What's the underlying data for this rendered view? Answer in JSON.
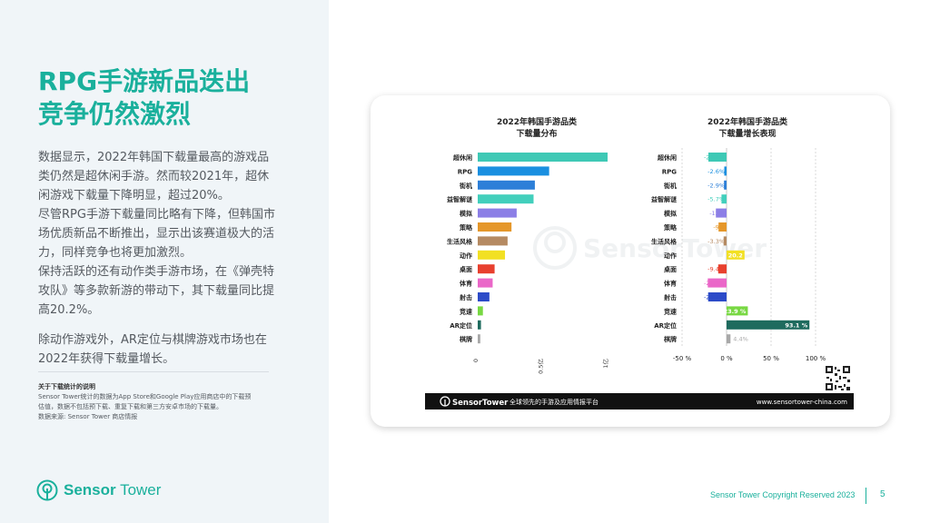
{
  "slide": {
    "title_lines": [
      "RPG手游新品迭出",
      "竞争仍然激烈"
    ],
    "paragraphs": [
      "数据显示，2022年韩国下载量最高的游戏品类仍然是超休闲手游。然而较2021年，超休闲游戏下载量下降明显，超过20%。",
      "尽管RPG手游下载量同比略有下降，但韩国市场优质新品不断推出，显示出该赛道极大的活力，同样竞争也将更加激烈。",
      "保持活跃的还有动作类手游市场，在《弹壳特攻队》等多款新游的带动下，其下载量同比提高20.2%。",
      "除动作游戏外，AR定位与棋牌游戏市场也在2022年获得下载量增长。"
    ],
    "notes_heading": "关于下载统计的说明",
    "notes_lines": [
      "Sensor Tower统计的数据为App Store和Google Play应用商店中的下载预",
      "估值，数据不包括预下载、重复下载和第三方安卓市场的下载量。",
      "数据来源: Sensor Tower 商店情报"
    ],
    "logo_word1": "Sensor",
    "logo_word2": "Tower",
    "copyright": "Sensor Tower Copyright Reserved 2023",
    "page_number": "5"
  },
  "card": {
    "watermark": "SensorTower",
    "footer_logo": "SensorTower",
    "footer_tagline": "全球领先的手游及应用情报平台",
    "footer_url": "www.sensortower-china.com"
  },
  "colors": {
    "brand": "#1ab09c",
    "categories": [
      "#3ec9b5",
      "#1a8fe0",
      "#2d7fd8",
      "#42cfbc",
      "#8c7fe6",
      "#e5972a",
      "#b58a62",
      "#f2e023",
      "#e8402e",
      "#ea67c8",
      "#2c4bc8",
      "#78d843",
      "#1e6b5e",
      "#a8a8a8"
    ]
  },
  "chart_data": [
    {
      "type": "bar",
      "title": "2022年韩国手游品类下载量分布",
      "title_lines": [
        "2022年韩国手游品类",
        "下载量分布"
      ],
      "orientation": "horizontal",
      "categories": [
        "超休闲",
        "RPG",
        "街机",
        "益智解谜",
        "模拟",
        "策略",
        "生活风格",
        "动作",
        "桌面",
        "体育",
        "射击",
        "竞速",
        "AR定位",
        "棋牌"
      ],
      "values": [
        1.0,
        0.55,
        0.44,
        0.43,
        0.3,
        0.26,
        0.23,
        0.21,
        0.13,
        0.115,
        0.09,
        0.04,
        0.025,
        0.02
      ],
      "xlim": [
        0,
        1
      ],
      "ticks": [
        0,
        0.5,
        1
      ],
      "tick_labels": [
        "0",
        "0.5亿",
        "1亿"
      ]
    },
    {
      "type": "bar",
      "title": "2022年韩国手游品类下载量增长表现",
      "title_lines": [
        "2022年韩国手游品类",
        "下载量增长表现"
      ],
      "orientation": "horizontal",
      "categories": [
        "超休闲",
        "RPG",
        "街机",
        "益智解谜",
        "模拟",
        "策略",
        "生活风格",
        "动作",
        "桌面",
        "体育",
        "射击",
        "竞速",
        "AR定位",
        "棋牌"
      ],
      "values": [
        -20.4,
        -2.6,
        -2.9,
        -5.7,
        -12,
        -9,
        -3.3,
        20.2,
        -9.4,
        -21.1,
        -20.7,
        23.9,
        93.1,
        4.4
      ],
      "value_labels": [
        "-20.4%",
        "-2.6%",
        "-2.9%",
        "-5.7%",
        "-12%",
        "-9%",
        "-3.3%",
        "20.2",
        "-9.4%",
        "-21.1%",
        "-20.7%",
        "23.9 %",
        "93.1 %",
        "4.4%"
      ],
      "xlim": [
        -50,
        100
      ],
      "ticks": [
        -50,
        0,
        50,
        100
      ],
      "tick_labels": [
        "-50 %",
        "0 %",
        "50 %",
        "100 %"
      ]
    }
  ]
}
